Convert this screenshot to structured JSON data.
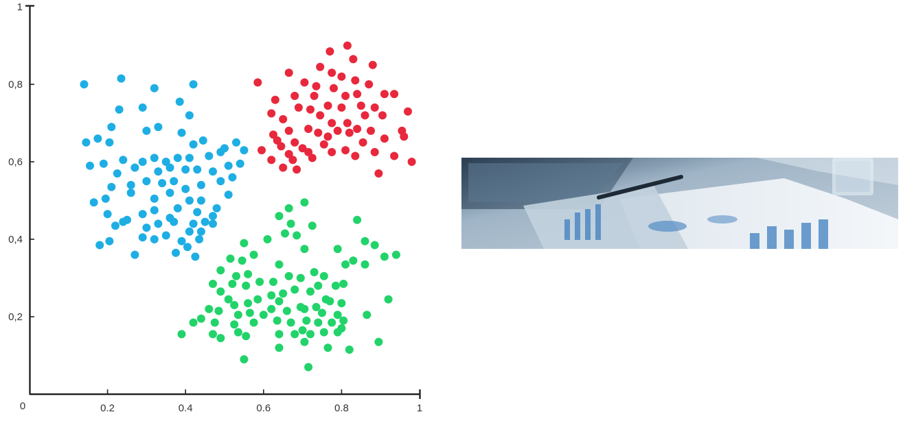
{
  "chart_data": {
    "type": "scatter",
    "title": "",
    "xlabel": "",
    "ylabel": "",
    "xlim": [
      0,
      1
    ],
    "ylim": [
      0,
      1
    ],
    "grid": false,
    "origin_label": "0",
    "x_ticks": [
      {
        "value": 0.2,
        "label": "0.2"
      },
      {
        "value": 0.4,
        "label": "0.4"
      },
      {
        "value": 0.6,
        "label": "0.6"
      },
      {
        "value": 0.8,
        "label": "0.8"
      },
      {
        "value": 1,
        "label": "1"
      }
    ],
    "y_ticks": [
      {
        "value": 0.2,
        "label": "0,2"
      },
      {
        "value": 0.4,
        "label": "0,4"
      },
      {
        "value": 0.6,
        "label": "0,6"
      },
      {
        "value": 0.8,
        "label": "0,8"
      },
      {
        "value": 1,
        "label": "1"
      }
    ],
    "series": [
      {
        "color": "#1eaee4",
        "points": [
          [
            0.14,
            0.8
          ],
          [
            0.235,
            0.815
          ],
          [
            0.32,
            0.79
          ],
          [
            0.42,
            0.8
          ],
          [
            0.23,
            0.735
          ],
          [
            0.29,
            0.74
          ],
          [
            0.385,
            0.755
          ],
          [
            0.41,
            0.72
          ],
          [
            0.21,
            0.69
          ],
          [
            0.3,
            0.68
          ],
          [
            0.33,
            0.69
          ],
          [
            0.39,
            0.675
          ],
          [
            0.42,
            0.645
          ],
          [
            0.445,
            0.655
          ],
          [
            0.145,
            0.65
          ],
          [
            0.175,
            0.66
          ],
          [
            0.205,
            0.65
          ],
          [
            0.5,
            0.635
          ],
          [
            0.53,
            0.65
          ],
          [
            0.55,
            0.63
          ],
          [
            0.24,
            0.605
          ],
          [
            0.27,
            0.585
          ],
          [
            0.29,
            0.6
          ],
          [
            0.32,
            0.61
          ],
          [
            0.35,
            0.6
          ],
          [
            0.38,
            0.61
          ],
          [
            0.41,
            0.61
          ],
          [
            0.46,
            0.615
          ],
          [
            0.49,
            0.625
          ],
          [
            0.155,
            0.59
          ],
          [
            0.19,
            0.595
          ],
          [
            0.225,
            0.57
          ],
          [
            0.33,
            0.575
          ],
          [
            0.36,
            0.585
          ],
          [
            0.4,
            0.58
          ],
          [
            0.43,
            0.58
          ],
          [
            0.47,
            0.575
          ],
          [
            0.51,
            0.59
          ],
          [
            0.54,
            0.595
          ],
          [
            0.21,
            0.535
          ],
          [
            0.26,
            0.54
          ],
          [
            0.3,
            0.55
          ],
          [
            0.34,
            0.545
          ],
          [
            0.37,
            0.55
          ],
          [
            0.4,
            0.53
          ],
          [
            0.44,
            0.54
          ],
          [
            0.49,
            0.55
          ],
          [
            0.52,
            0.56
          ],
          [
            0.165,
            0.495
          ],
          [
            0.195,
            0.505
          ],
          [
            0.26,
            0.52
          ],
          [
            0.32,
            0.505
          ],
          [
            0.36,
            0.52
          ],
          [
            0.41,
            0.5
          ],
          [
            0.44,
            0.5
          ],
          [
            0.48,
            0.48
          ],
          [
            0.51,
            0.515
          ],
          [
            0.2,
            0.465
          ],
          [
            0.24,
            0.445
          ],
          [
            0.29,
            0.465
          ],
          [
            0.32,
            0.475
          ],
          [
            0.36,
            0.455
          ],
          [
            0.38,
            0.48
          ],
          [
            0.43,
            0.47
          ],
          [
            0.47,
            0.46
          ],
          [
            0.22,
            0.435
          ],
          [
            0.25,
            0.45
          ],
          [
            0.3,
            0.43
          ],
          [
            0.33,
            0.44
          ],
          [
            0.37,
            0.445
          ],
          [
            0.42,
            0.44
          ],
          [
            0.45,
            0.445
          ],
          [
            0.47,
            0.44
          ],
          [
            0.205,
            0.395
          ],
          [
            0.29,
            0.405
          ],
          [
            0.32,
            0.4
          ],
          [
            0.35,
            0.41
          ],
          [
            0.39,
            0.395
          ],
          [
            0.41,
            0.42
          ],
          [
            0.44,
            0.42
          ],
          [
            0.18,
            0.385
          ],
          [
            0.27,
            0.36
          ],
          [
            0.375,
            0.365
          ],
          [
            0.405,
            0.38
          ],
          [
            0.425,
            0.355
          ],
          [
            0.435,
            0.4
          ]
        ]
      },
      {
        "color": "#e8283d",
        "points": [
          [
            0.77,
            0.885
          ],
          [
            0.815,
            0.9
          ],
          [
            0.83,
            0.865
          ],
          [
            0.745,
            0.845
          ],
          [
            0.775,
            0.83
          ],
          [
            0.8,
            0.82
          ],
          [
            0.88,
            0.85
          ],
          [
            0.665,
            0.83
          ],
          [
            0.585,
            0.805
          ],
          [
            0.705,
            0.805
          ],
          [
            0.735,
            0.795
          ],
          [
            0.835,
            0.81
          ],
          [
            0.87,
            0.8
          ],
          [
            0.68,
            0.77
          ],
          [
            0.73,
            0.77
          ],
          [
            0.78,
            0.79
          ],
          [
            0.81,
            0.77
          ],
          [
            0.84,
            0.775
          ],
          [
            0.91,
            0.775
          ],
          [
            0.935,
            0.775
          ],
          [
            0.63,
            0.76
          ],
          [
            0.69,
            0.74
          ],
          [
            0.72,
            0.735
          ],
          [
            0.765,
            0.745
          ],
          [
            0.8,
            0.74
          ],
          [
            0.85,
            0.745
          ],
          [
            0.885,
            0.74
          ],
          [
            0.62,
            0.725
          ],
          [
            0.65,
            0.71
          ],
          [
            0.745,
            0.72
          ],
          [
            0.775,
            0.7
          ],
          [
            0.815,
            0.7
          ],
          [
            0.86,
            0.72
          ],
          [
            0.905,
            0.72
          ],
          [
            0.97,
            0.73
          ],
          [
            0.665,
            0.68
          ],
          [
            0.715,
            0.685
          ],
          [
            0.74,
            0.675
          ],
          [
            0.79,
            0.68
          ],
          [
            0.84,
            0.685
          ],
          [
            0.875,
            0.68
          ],
          [
            0.91,
            0.66
          ],
          [
            0.955,
            0.68
          ],
          [
            0.625,
            0.67
          ],
          [
            0.635,
            0.655
          ],
          [
            0.68,
            0.65
          ],
          [
            0.7,
            0.635
          ],
          [
            0.755,
            0.645
          ],
          [
            0.765,
            0.665
          ],
          [
            0.82,
            0.675
          ],
          [
            0.855,
            0.65
          ],
          [
            0.96,
            0.665
          ],
          [
            0.595,
            0.63
          ],
          [
            0.645,
            0.64
          ],
          [
            0.665,
            0.62
          ],
          [
            0.715,
            0.625
          ],
          [
            0.775,
            0.625
          ],
          [
            0.81,
            0.63
          ],
          [
            0.885,
            0.625
          ],
          [
            0.935,
            0.615
          ],
          [
            0.62,
            0.605
          ],
          [
            0.675,
            0.605
          ],
          [
            0.725,
            0.61
          ],
          [
            0.835,
            0.615
          ],
          [
            0.98,
            0.6
          ],
          [
            0.65,
            0.585
          ],
          [
            0.685,
            0.58
          ],
          [
            0.895,
            0.57
          ]
        ]
      },
      {
        "color": "#22d36a",
        "points": [
          [
            0.705,
            0.495
          ],
          [
            0.665,
            0.48
          ],
          [
            0.64,
            0.46
          ],
          [
            0.67,
            0.44
          ],
          [
            0.655,
            0.415
          ],
          [
            0.685,
            0.41
          ],
          [
            0.725,
            0.435
          ],
          [
            0.84,
            0.45
          ],
          [
            0.55,
            0.39
          ],
          [
            0.61,
            0.4
          ],
          [
            0.705,
            0.375
          ],
          [
            0.79,
            0.375
          ],
          [
            0.86,
            0.395
          ],
          [
            0.885,
            0.385
          ],
          [
            0.575,
            0.36
          ],
          [
            0.545,
            0.345
          ],
          [
            0.515,
            0.35
          ],
          [
            0.64,
            0.335
          ],
          [
            0.83,
            0.345
          ],
          [
            0.91,
            0.355
          ],
          [
            0.94,
            0.36
          ],
          [
            0.49,
            0.32
          ],
          [
            0.53,
            0.305
          ],
          [
            0.56,
            0.31
          ],
          [
            0.73,
            0.315
          ],
          [
            0.755,
            0.305
          ],
          [
            0.81,
            0.335
          ],
          [
            0.86,
            0.335
          ],
          [
            0.47,
            0.285
          ],
          [
            0.52,
            0.285
          ],
          [
            0.555,
            0.28
          ],
          [
            0.59,
            0.29
          ],
          [
            0.625,
            0.29
          ],
          [
            0.665,
            0.305
          ],
          [
            0.695,
            0.3
          ],
          [
            0.74,
            0.28
          ],
          [
            0.785,
            0.28
          ],
          [
            0.805,
            0.285
          ],
          [
            0.49,
            0.265
          ],
          [
            0.51,
            0.245
          ],
          [
            0.585,
            0.245
          ],
          [
            0.62,
            0.255
          ],
          [
            0.65,
            0.26
          ],
          [
            0.68,
            0.27
          ],
          [
            0.72,
            0.265
          ],
          [
            0.76,
            0.245
          ],
          [
            0.8,
            0.235
          ],
          [
            0.525,
            0.23
          ],
          [
            0.56,
            0.235
          ],
          [
            0.64,
            0.24
          ],
          [
            0.695,
            0.225
          ],
          [
            0.735,
            0.225
          ],
          [
            0.77,
            0.24
          ],
          [
            0.46,
            0.22
          ],
          [
            0.485,
            0.215
          ],
          [
            0.535,
            0.205
          ],
          [
            0.565,
            0.21
          ],
          [
            0.6,
            0.205
          ],
          [
            0.62,
            0.22
          ],
          [
            0.66,
            0.215
          ],
          [
            0.705,
            0.22
          ],
          [
            0.75,
            0.21
          ],
          [
            0.79,
            0.205
          ],
          [
            0.865,
            0.205
          ],
          [
            0.92,
            0.245
          ],
          [
            0.44,
            0.195
          ],
          [
            0.475,
            0.185
          ],
          [
            0.525,
            0.18
          ],
          [
            0.575,
            0.185
          ],
          [
            0.635,
            0.19
          ],
          [
            0.67,
            0.185
          ],
          [
            0.71,
            0.19
          ],
          [
            0.74,
            0.185
          ],
          [
            0.775,
            0.185
          ],
          [
            0.805,
            0.19
          ],
          [
            0.39,
            0.155
          ],
          [
            0.42,
            0.185
          ],
          [
            0.47,
            0.155
          ],
          [
            0.49,
            0.145
          ],
          [
            0.535,
            0.16
          ],
          [
            0.555,
            0.15
          ],
          [
            0.64,
            0.155
          ],
          [
            0.68,
            0.155
          ],
          [
            0.7,
            0.165
          ],
          [
            0.72,
            0.155
          ],
          [
            0.755,
            0.16
          ],
          [
            0.79,
            0.16
          ],
          [
            0.8,
            0.17
          ],
          [
            0.64,
            0.12
          ],
          [
            0.705,
            0.135
          ],
          [
            0.765,
            0.12
          ],
          [
            0.82,
            0.115
          ],
          [
            0.895,
            0.135
          ],
          [
            0.55,
            0.09
          ],
          [
            0.715,
            0.07
          ]
        ]
      }
    ]
  },
  "banner": {
    "icon": "business-analytics-photo"
  }
}
